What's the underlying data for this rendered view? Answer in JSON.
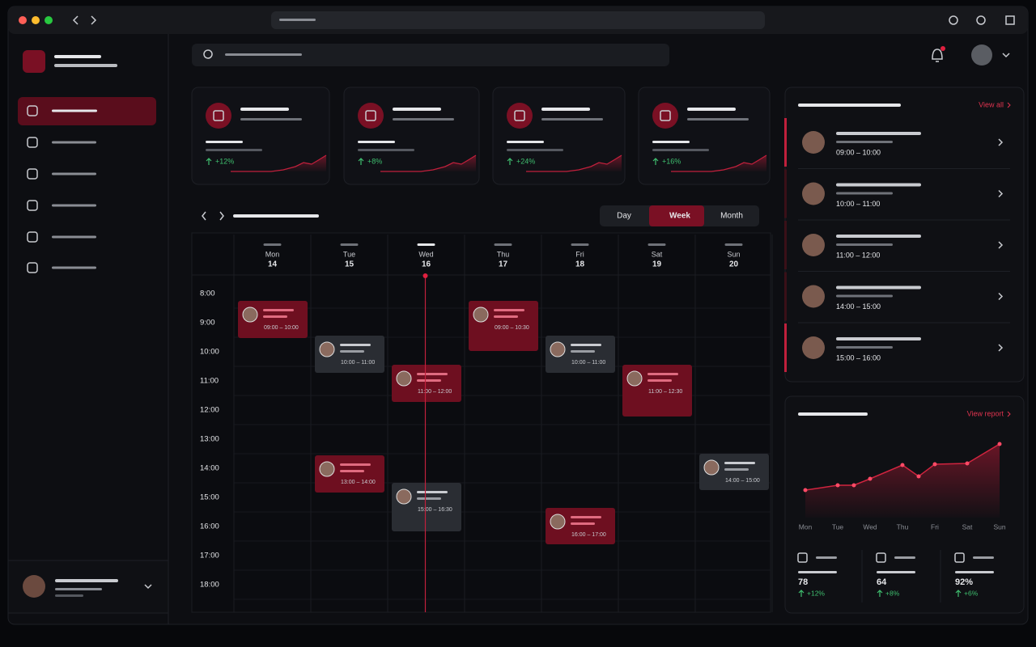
{
  "links": {
    "view_all": "View all",
    "view_report": "View report"
  },
  "stats": [
    {
      "change": "+12%"
    },
    {
      "change": "+8%"
    },
    {
      "change": "+24%"
    },
    {
      "change": "+16%"
    }
  ],
  "calendar": {
    "views": [
      {
        "label": "Day"
      },
      {
        "label": "Week",
        "active": true
      },
      {
        "label": "Month"
      }
    ],
    "hours": [
      "8:00",
      "9:00",
      "10:00",
      "11:00",
      "12:00",
      "13:00",
      "14:00",
      "15:00",
      "16:00",
      "17:00",
      "18:00"
    ],
    "days": [
      {
        "name": "Mon",
        "date": "14",
        "events": [
          {
            "time": "09:00 – 10:00",
            "color": "#6e0f20"
          }
        ]
      },
      {
        "name": "Tue",
        "date": "15",
        "events": [
          {
            "time": "10:00 – 11:00",
            "color": "#2a2d33"
          },
          {
            "time": "13:00 – 14:00",
            "color": "#6e0f20"
          }
        ]
      },
      {
        "name": "Wed",
        "date": "16",
        "today": true,
        "events": [
          {
            "time": "11:00 – 12:00",
            "color": "#6e0f20"
          },
          {
            "time": "15:00 – 16:30",
            "color": "#2a2d33"
          }
        ]
      },
      {
        "name": "Thu",
        "date": "17",
        "events": [
          {
            "time": "09:00 – 10:30",
            "color": "#6e0f20"
          }
        ]
      },
      {
        "name": "Fri",
        "date": "18",
        "events": [
          {
            "time": "10:00 – 11:00",
            "color": "#2a2d33"
          },
          {
            "time": "16:00 – 17:00",
            "color": "#6e0f20"
          }
        ]
      },
      {
        "name": "Sat",
        "date": "19",
        "events": [
          {
            "time": "11:00 – 12:30",
            "color": "#6e0f20"
          }
        ]
      },
      {
        "name": "Sun",
        "date": "20",
        "events": [
          {
            "time": "14:00 – 15:00",
            "color": "#2a2d33"
          }
        ]
      }
    ]
  },
  "upcoming": [
    {
      "time": "09:00 – 10:00",
      "highlight": true
    },
    {
      "time": "10:00 – 11:00"
    },
    {
      "time": "11:00 – 12:00"
    },
    {
      "time": "14:00 – 15:00"
    },
    {
      "time": "15:00 – 16:00",
      "highlight": true
    }
  ],
  "chart_data": {
    "type": "line",
    "color": "#d0243f",
    "x": [
      0,
      1,
      1.5,
      2,
      3,
      3.5,
      4,
      5,
      6
    ],
    "values": [
      34,
      40,
      40,
      48,
      65,
      51,
      66,
      67,
      91
    ],
    "xlim": [
      0,
      6
    ],
    "ylim": [
      0,
      100
    ],
    "xticks": [
      {
        "value": 0,
        "label": "Mon"
      },
      {
        "value": 1,
        "label": "Tue"
      },
      {
        "value": 2,
        "label": "Wed"
      },
      {
        "value": 3,
        "label": "Thu"
      },
      {
        "value": 4,
        "label": "Fri"
      },
      {
        "value": 5,
        "label": "Sat"
      },
      {
        "value": 6,
        "label": "Sun"
      }
    ]
  },
  "summary": [
    {
      "value": "78",
      "change": "+12%"
    },
    {
      "value": "64",
      "change": "+8%"
    },
    {
      "value": "92%",
      "change": "+6%"
    }
  ]
}
